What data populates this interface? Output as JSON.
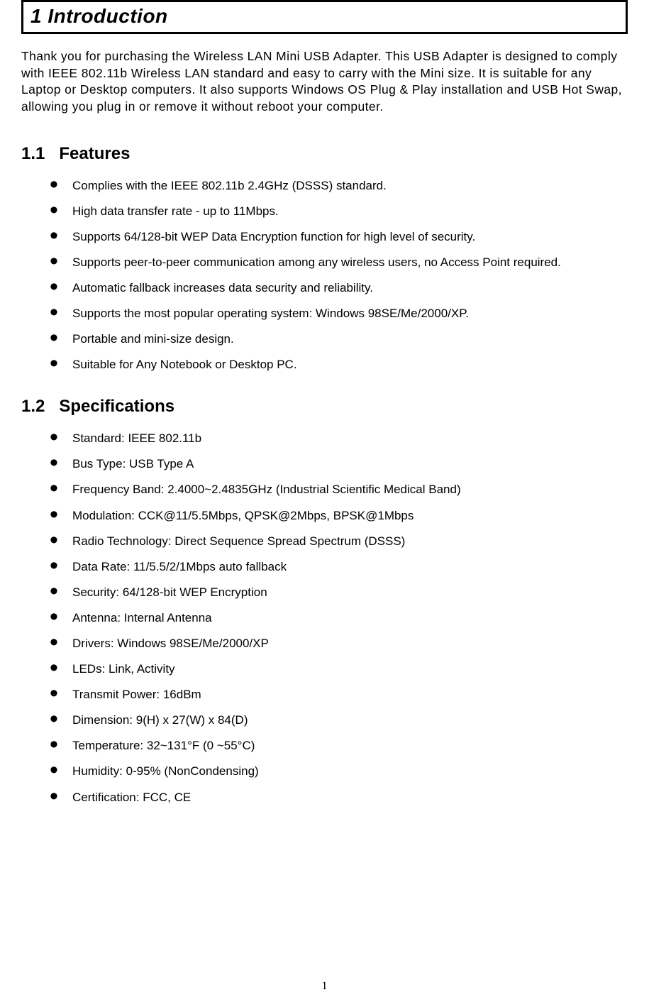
{
  "title": "1  Introduction",
  "intro": "Thank you for purchasing the Wireless LAN Mini USB Adapter. This USB Adapter is designed to comply with IEEE 802.11b Wireless LAN standard and easy to carry with the Mini size. It is suitable for any Laptop or Desktop computers. It also supports Windows OS Plug & Play installation and USB Hot Swap, allowing you plug in or remove it without reboot your computer.",
  "section1": {
    "num": "1.1",
    "heading": "Features",
    "items": [
      "Complies with the IEEE 802.11b 2.4GHz (DSSS) standard.",
      "High data transfer rate - up to 11Mbps.",
      "Supports 64/128-bit WEP Data Encryption function for high level of security.",
      "Supports peer-to-peer communication among any wireless users, no Access Point required.",
      "Automatic fallback increases data security and reliability.",
      "Supports the most popular operating system: Windows 98SE/Me/2000/XP.",
      "Portable and mini-size design.",
      "Suitable for Any Notebook or Desktop PC."
    ]
  },
  "section2": {
    "num": "1.2",
    "heading": "Specifications",
    "items": [
      "Standard: IEEE 802.11b",
      "Bus Type: USB Type A",
      "Frequency Band: 2.4000~2.4835GHz (Industrial Scientific Medical Band)",
      "Modulation: CCK@11/5.5Mbps, QPSK@2Mbps, BPSK@1Mbps",
      "Radio Technology: Direct Sequence Spread Spectrum (DSSS)",
      "Data Rate: 11/5.5/2/1Mbps auto fallback",
      "Security: 64/128-bit WEP Encryption",
      "Antenna: Internal Antenna",
      "Drivers: Windows 98SE/Me/2000/XP",
      "LEDs: Link, Activity",
      "Transmit Power: 16dBm",
      "Dimension: 9(H) x 27(W) x 84(D)",
      "Temperature: 32~131°F (0 ~55°C)",
      "Humidity: 0-95% (NonCondensing)",
      "Certification: FCC, CE"
    ]
  },
  "page_number": "1",
  "styles": {
    "body_width": 915,
    "body_height": 1419,
    "frame_border": "3px solid #000000",
    "title_fontsize": 28,
    "title_weight": "bold",
    "title_style": "italic",
    "intro_fontsize": 17.5,
    "subheading_fontsize": 24,
    "list_fontsize": 17,
    "bullet_color": "#000000",
    "text_color": "#000000",
    "background_color": "#ffffff"
  }
}
